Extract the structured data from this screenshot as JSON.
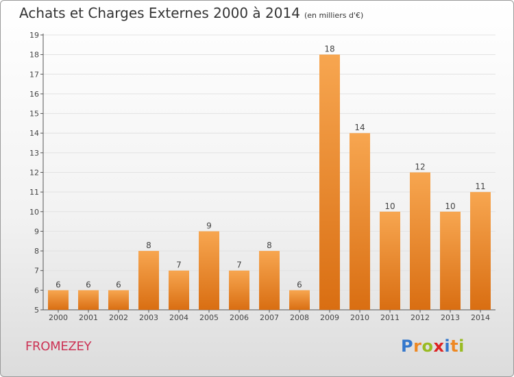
{
  "header": {
    "title": "Achats et Charges Externes 2000 à 2014",
    "unit": "(en milliers d'€)"
  },
  "footer": {
    "commune": "FROMEZEY",
    "logo_letters": [
      "P",
      "r",
      "o",
      "x",
      "i",
      "t",
      "i"
    ]
  },
  "colors": {
    "bar_light": "#f7a650",
    "bar_dark": "#d96e12",
    "commune_text": "#cc3355",
    "logo": [
      "#3377cc",
      "#ee8822",
      "#99bb22",
      "#dd2222",
      "#3377cc",
      "#ee8822",
      "#99bb22"
    ]
  },
  "chart_data": {
    "type": "bar",
    "title": "Achats et Charges Externes 2000 à 2014",
    "subtitle": "(en milliers d'€)",
    "categories": [
      "2000",
      "2001",
      "2002",
      "2003",
      "2004",
      "2005",
      "2006",
      "2007",
      "2008",
      "2009",
      "2010",
      "2011",
      "2012",
      "2013",
      "2014"
    ],
    "values": [
      6,
      6,
      6,
      8,
      7,
      9,
      7,
      8,
      6,
      18,
      14,
      10,
      12,
      10,
      11
    ],
    "ylim": [
      5,
      19
    ],
    "yticks": [
      5,
      6,
      7,
      8,
      9,
      10,
      11,
      12,
      13,
      14,
      15,
      16,
      17,
      18,
      19
    ],
    "grid": true,
    "data_labels": true
  }
}
